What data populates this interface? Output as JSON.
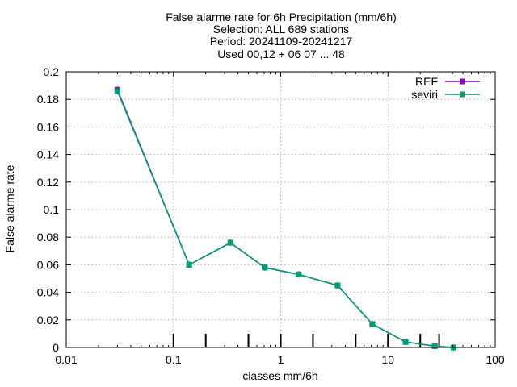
{
  "chart_data": {
    "type": "line",
    "title_lines": [
      "False alarme rate  for 6h Precipitation (mm/6h)",
      "Selection: ALL    689 stations",
      "Period: 20241109-20241217",
      "Used 00,12 + 06 07 ... 48"
    ],
    "xlabel": "classes mm/6h",
    "ylabel": "False alarme rate",
    "x_scale": "log",
    "xlim": [
      0.01,
      100
    ],
    "ylim": [
      0,
      0.2
    ],
    "x_ticks": [
      0.01,
      0.1,
      1,
      10,
      100
    ],
    "x_tick_labels": [
      "0.01",
      "0.1",
      "1",
      "10",
      "100"
    ],
    "y_ticks": [
      0,
      0.02,
      0.04,
      0.06,
      0.08,
      0.1,
      0.12,
      0.14,
      0.16,
      0.18,
      0.2
    ],
    "y_tick_labels": [
      "0",
      "0.02",
      "0.04",
      "0.06",
      "0.08",
      "0.1",
      "0.12",
      "0.14",
      "0.16",
      "0.18",
      "0.2"
    ],
    "grid": true,
    "legend_position": "top-right",
    "class_limits": [
      0.1,
      0.2,
      0.5,
      1,
      2,
      5,
      10,
      20,
      30
    ],
    "class_limit_marker_height": 0.004,
    "series": [
      {
        "name": "REF",
        "color": "#9400d3",
        "x": [
          0.03,
          0.14,
          0.34,
          0.71,
          1.47,
          3.39,
          7.15,
          14.6,
          27.3,
          40.9
        ],
        "y": [
          0.187,
          0.06,
          0.076,
          0.058,
          0.053,
          0.045,
          0.017,
          0.004,
          0.001,
          0.0
        ]
      },
      {
        "name": "seviri",
        "color": "#009e73",
        "x": [
          0.03,
          0.14,
          0.34,
          0.71,
          1.47,
          3.39,
          7.15,
          14.6,
          27.3,
          40.9
        ],
        "y": [
          0.186,
          0.06,
          0.076,
          0.058,
          0.053,
          0.045,
          0.017,
          0.004,
          0.001,
          0.0
        ]
      }
    ]
  }
}
